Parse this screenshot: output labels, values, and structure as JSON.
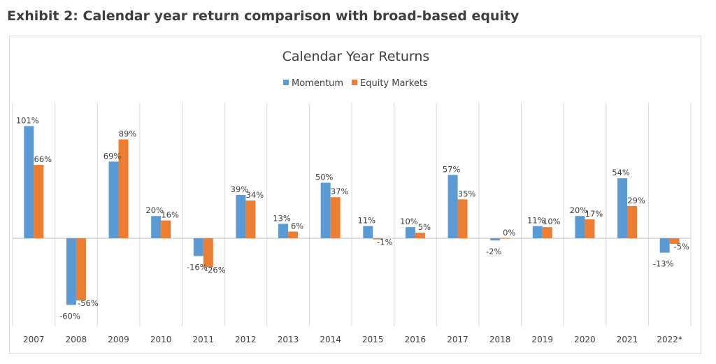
{
  "page": {
    "exhibit_title": "Exhibit 2: Calendar year return comparison with broad-based equity"
  },
  "chart_data": {
    "type": "bar",
    "title": "Calendar Year Returns",
    "xlabel": "",
    "ylabel": "",
    "legend_position": "top",
    "grid": "vertical category separators",
    "ylim": [
      -85,
      115
    ],
    "categories": [
      "2007",
      "2008",
      "2009",
      "2010",
      "2011",
      "2012",
      "2013",
      "2014",
      "2015",
      "2016",
      "2017",
      "2018",
      "2019",
      "2020",
      "2021",
      "2022*"
    ],
    "series": [
      {
        "name": "Momentum",
        "color": "#5b9bd5",
        "values": [
          101,
          -60,
          69,
          20,
          -16,
          39,
          13,
          50,
          11,
          10,
          57,
          -2,
          11,
          20,
          54,
          -13
        ],
        "labels": [
          "101%",
          "-60%",
          "69%",
          "20%",
          "-16%",
          "39%",
          "13%",
          "50%",
          "11%",
          "10%",
          "57%",
          "-2%",
          "11%",
          "20%",
          "54%",
          "-13%"
        ]
      },
      {
        "name": "Equity Markets",
        "color": "#ed7d31",
        "values": [
          66,
          -56,
          89,
          16,
          -26,
          34,
          6,
          37,
          -1,
          5,
          35,
          0,
          10,
          17,
          29,
          -5
        ],
        "labels": [
          "66%",
          "-56%",
          "89%",
          "16%",
          "-26%",
          "34%",
          "6%",
          "37%",
          "-1%",
          "5%",
          "35%",
          "0%",
          "10%",
          "17%",
          "29%",
          "-5%"
        ]
      }
    ]
  }
}
